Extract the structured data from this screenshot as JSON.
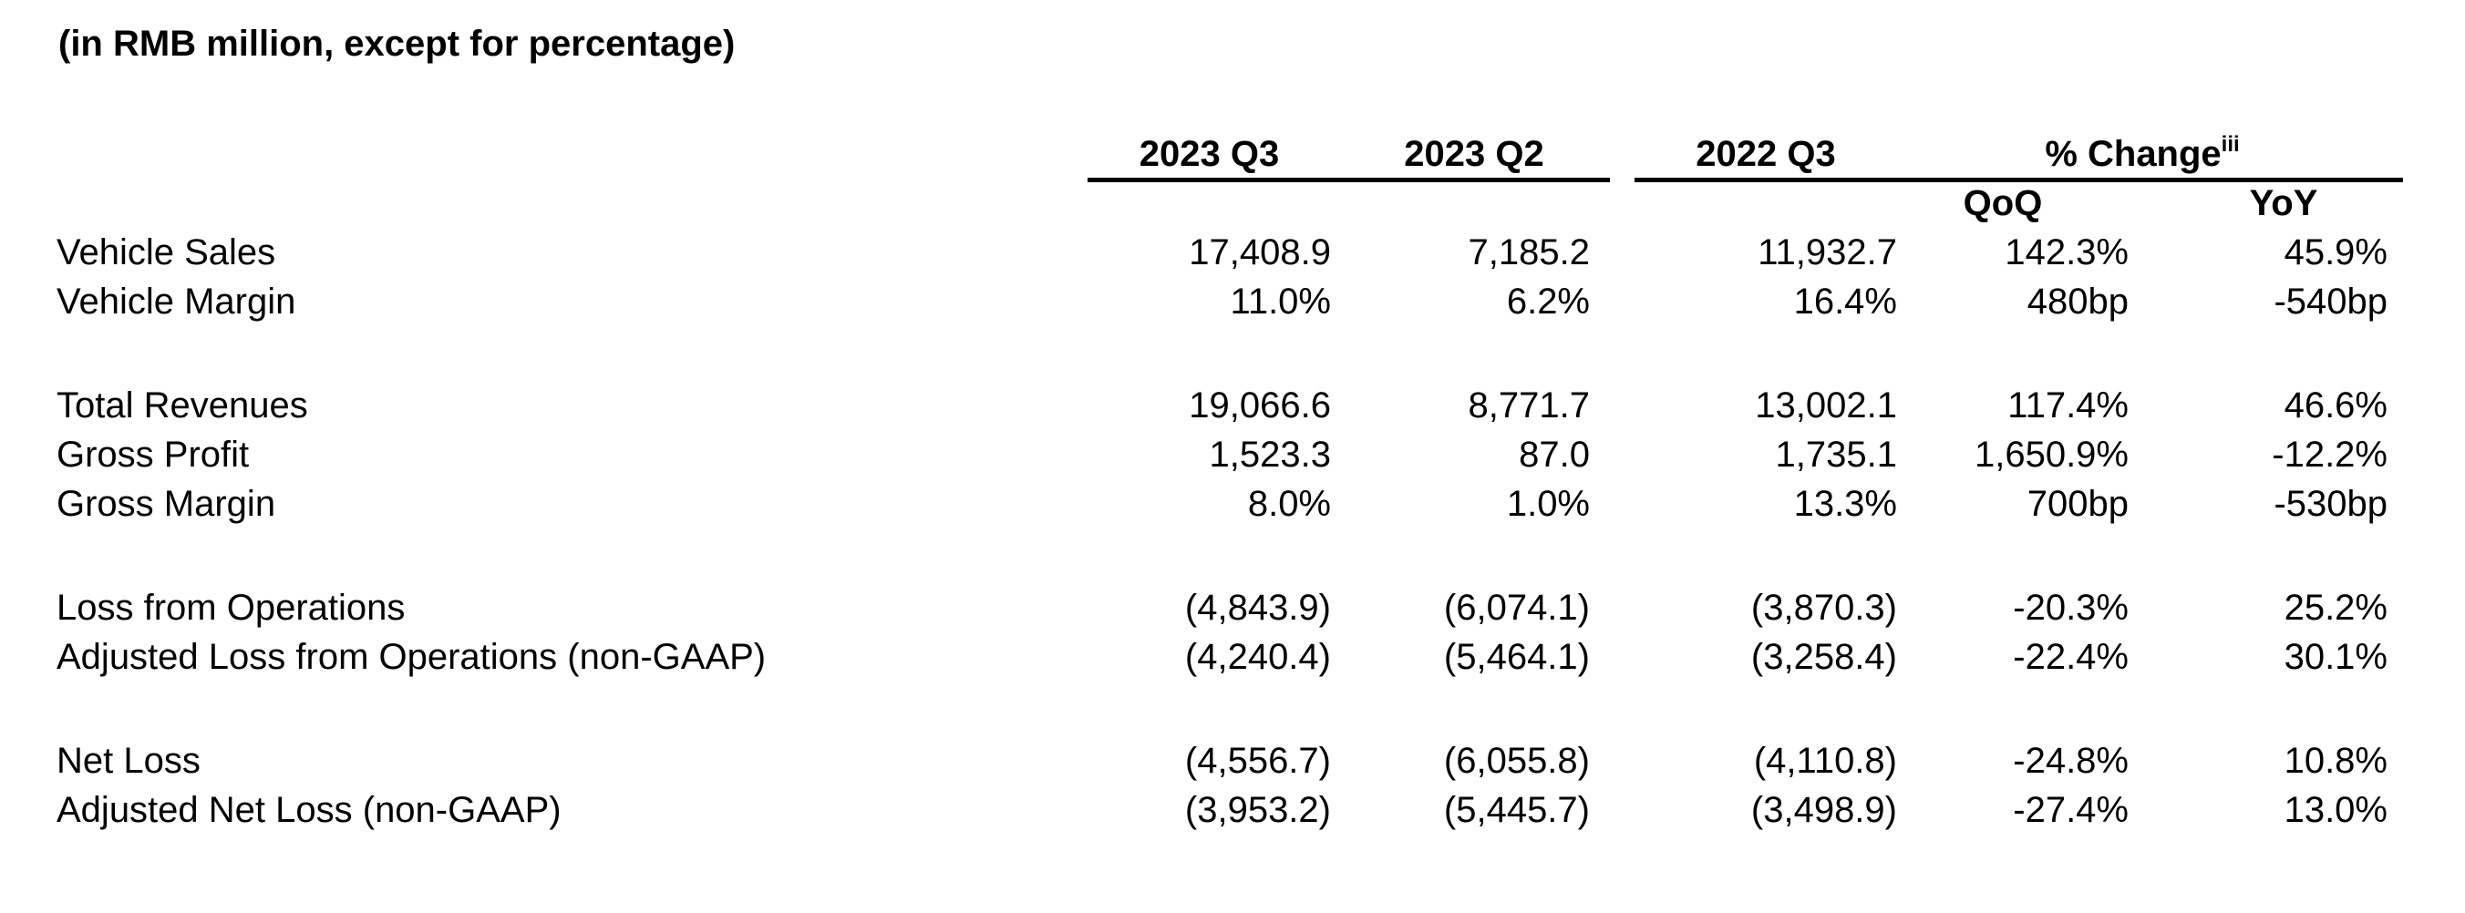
{
  "title": "(in RMB million, except for percentage)",
  "table": {
    "headers": {
      "q3_2023": "2023 Q3",
      "q2_2023": "2023 Q2",
      "q3_2022": "2022 Q3",
      "pct_change": "% Change",
      "pct_change_footnote": "iii",
      "qoq": "QoQ",
      "yoy": "YoY"
    },
    "rows": [
      {
        "label": "Vehicle Sales",
        "q3_2023": "17,408.9",
        "q2_2023": "7,185.2",
        "q3_2022": "11,932.7",
        "qoq": "142.3%",
        "yoy": "45.9%"
      },
      {
        "label": "Vehicle Margin",
        "q3_2023": "11.0%",
        "q2_2023": "6.2%",
        "q3_2022": "16.4%",
        "qoq": "480bp",
        "yoy": "-540bp"
      },
      {
        "label": "Total Revenues",
        "q3_2023": "19,066.6",
        "q2_2023": "8,771.7",
        "q3_2022": "13,002.1",
        "qoq": "117.4%",
        "yoy": "46.6%"
      },
      {
        "label": "Gross Profit",
        "q3_2023": "1,523.3",
        "q2_2023": "87.0",
        "q3_2022": "1,735.1",
        "qoq": "1,650.9%",
        "yoy": "-12.2%"
      },
      {
        "label": "Gross Margin",
        "q3_2023": "8.0%",
        "q2_2023": "1.0%",
        "q3_2022": "13.3%",
        "qoq": "700bp",
        "yoy": "-530bp"
      },
      {
        "label": "Loss from Operations",
        "q3_2023": "(4,843.9)",
        "q2_2023": "(6,074.1)",
        "q3_2022": "(3,870.3)",
        "qoq": "-20.3%",
        "yoy": "25.2%"
      },
      {
        "label": "Adjusted Loss from Operations (non-GAAP)",
        "q3_2023": "(4,240.4)",
        "q2_2023": "(5,464.1)",
        "q3_2022": "(3,258.4)",
        "qoq": "-22.4%",
        "yoy": "30.1%"
      },
      {
        "label": "Net Loss",
        "q3_2023": "(4,556.7)",
        "q2_2023": "(6,055.8)",
        "q3_2022": "(4,110.8)",
        "qoq": "-24.8%",
        "yoy": "10.8%"
      },
      {
        "label": "Adjusted Net Loss (non-GAAP)",
        "q3_2023": "(3,953.2)",
        "q2_2023": "(5,445.7)",
        "q3_2022": "(3,498.9)",
        "qoq": "-27.4%",
        "yoy": "13.0%"
      }
    ],
    "colors": {
      "text": "#000000",
      "background": "#ffffff",
      "rule": "#000000"
    }
  }
}
